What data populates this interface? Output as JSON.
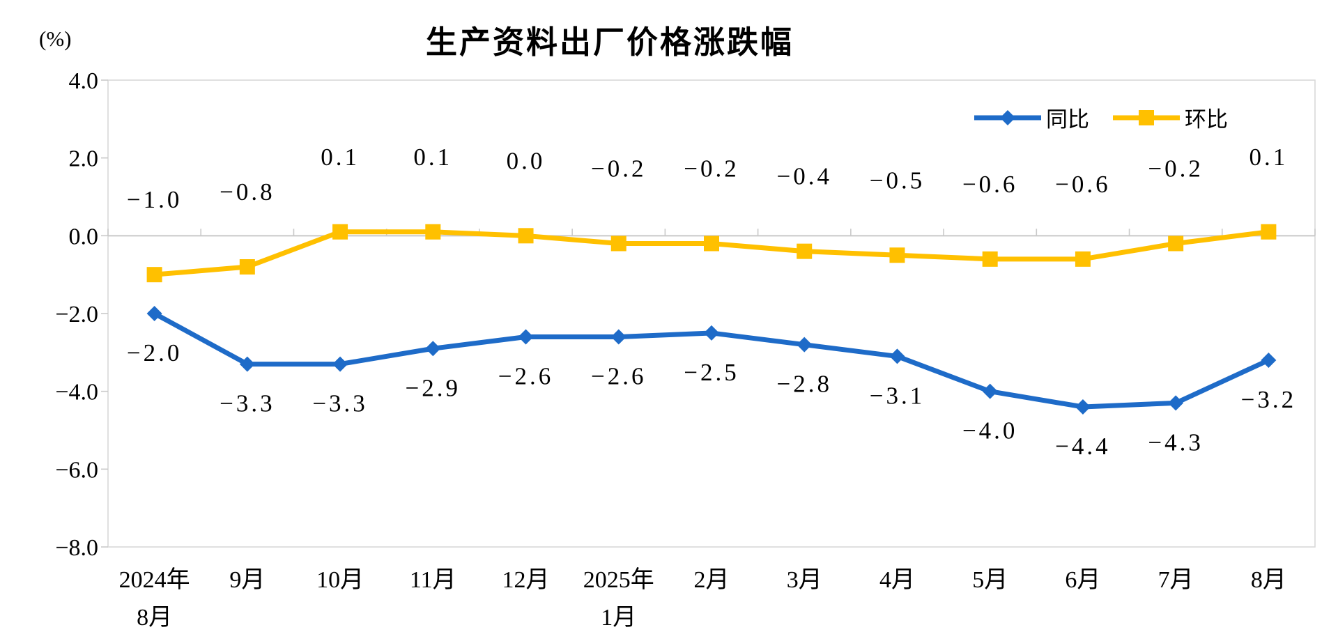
{
  "chart_data": {
    "type": "line",
    "title": "生产资料出厂价格涨跌幅",
    "unit_label": "(%)",
    "xlabel": "",
    "ylabel": "(%)",
    "ylim": [
      -8.0,
      4.0
    ],
    "yticks": [
      4.0,
      2.0,
      0.0,
      -2.0,
      -4.0,
      -6.0,
      -8.0
    ],
    "grid": false,
    "legend_position": "top-right",
    "zero_axis_shown": true,
    "categories": [
      [
        "2024年",
        "8月"
      ],
      "9月",
      "10月",
      "11月",
      "12月",
      [
        "2025年",
        "1月"
      ],
      "2月",
      "3月",
      "4月",
      "5月",
      "6月",
      "7月",
      "8月"
    ],
    "series": [
      {
        "name": "同比",
        "marker": "diamond",
        "color": "#1E6BC8",
        "label_position": "below",
        "values": [
          -2.0,
          -3.3,
          -3.3,
          -2.9,
          -2.6,
          -2.6,
          -2.5,
          -2.8,
          -3.1,
          -4.0,
          -4.4,
          -4.3,
          -3.2
        ]
      },
      {
        "name": "环比",
        "marker": "square",
        "color": "#FFC000",
        "label_position": "above",
        "values": [
          -1.0,
          -0.8,
          0.1,
          0.1,
          0.0,
          -0.2,
          -0.2,
          -0.4,
          -0.5,
          -0.6,
          -0.6,
          -0.2,
          0.1
        ]
      }
    ],
    "axis_colors": {
      "border": "#D9D9D9",
      "zero_line": "#C9C9C9",
      "tick": "#C9C9C9",
      "text": "#000000"
    }
  }
}
